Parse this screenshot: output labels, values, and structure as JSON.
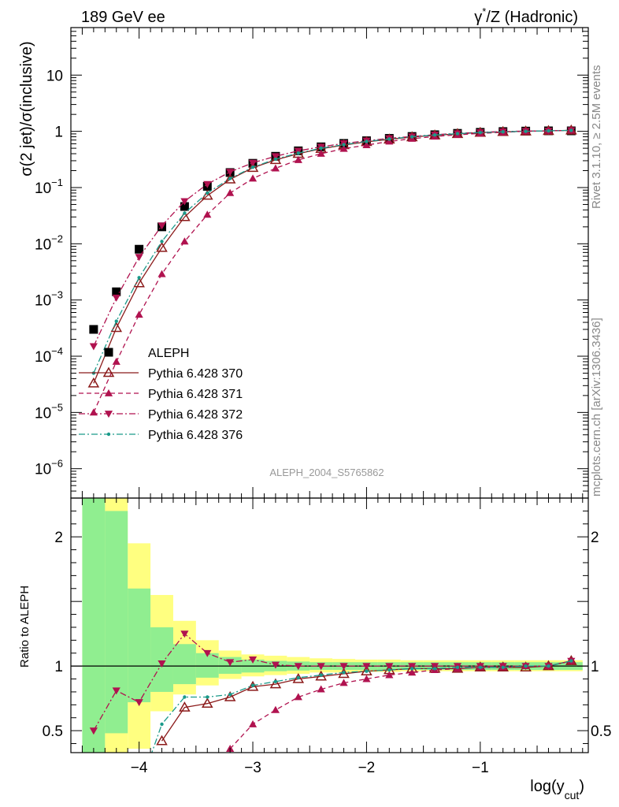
{
  "header": {
    "left": "189 GeV ee",
    "right_prefix": "γ",
    "right_sup": "*",
    "right_suffix": "/Z (Hadronic)"
  },
  "side_labels": {
    "rivet": "Rivet 3.1.10, ≥ 2.5M events",
    "mcplots": "mcplots.cern.ch [arXiv:1306.3436]"
  },
  "watermark": "ALEPH_2004_S5765862",
  "chart_data": [
    {
      "type": "scatter",
      "panel": "main",
      "ylabel": "σ(2 jet)/σ(inclusive)",
      "y_scale": "log",
      "xlim": [
        -4.6,
        -0.05
      ],
      "ylim": [
        3e-07,
        70
      ],
      "y_ticks": [
        {
          "v": 1e-06,
          "base": "10",
          "exp": "−6"
        },
        {
          "v": 1e-05,
          "base": "10",
          "exp": "−5"
        },
        {
          "v": 0.0001,
          "base": "10",
          "exp": "−4"
        },
        {
          "v": 0.001,
          "base": "10",
          "exp": "−3"
        },
        {
          "v": 0.01,
          "base": "10",
          "exp": "−2"
        },
        {
          "v": 0.1,
          "base": "10",
          "exp": "−1"
        },
        {
          "v": 1,
          "base": "1",
          "exp": ""
        },
        {
          "v": 10,
          "base": "10",
          "exp": ""
        }
      ],
      "legend_position": "lower-left",
      "x": [
        -4.4,
        -4.2,
        -4.0,
        -3.8,
        -3.6,
        -3.4,
        -3.2,
        -3.0,
        -2.8,
        -2.6,
        -2.4,
        -2.2,
        -2.0,
        -1.8,
        -1.6,
        -1.4,
        -1.2,
        -1.0,
        -0.8,
        -0.6,
        -0.4,
        -0.2
      ],
      "series": [
        {
          "name": "ALEPH",
          "color": "#000000",
          "marker": "square",
          "line": "none",
          "x": [
            -4.4,
            -4.2,
            -4.0,
            -3.8,
            -3.6,
            -3.4,
            -3.2,
            -3.0,
            -2.8,
            -2.6,
            -2.4,
            -2.2,
            -2.0,
            -1.8,
            -1.6,
            -1.4,
            -1.2,
            -1.0,
            -0.8,
            -0.6,
            -0.4,
            -0.2
          ],
          "values": [
            0.0003,
            0.0014,
            0.008,
            0.02,
            0.046,
            0.105,
            0.185,
            0.27,
            0.36,
            0.45,
            0.53,
            0.61,
            0.68,
            0.75,
            0.81,
            0.87,
            0.92,
            0.96,
            0.99,
            1.01,
            1.02,
            1.02
          ]
        },
        {
          "name": "Pythia 6.428 370",
          "color": "#8b1a1a",
          "marker": "triangle-up-open",
          "line": "solid",
          "values": [
            3.3e-05,
            0.00032,
            0.002,
            0.0085,
            0.03,
            0.072,
            0.14,
            0.225,
            0.31,
            0.4,
            0.49,
            0.57,
            0.65,
            0.72,
            0.79,
            0.85,
            0.9,
            0.95,
            0.98,
            1.0,
            1.02,
            1.04
          ]
        },
        {
          "name": "Pythia 6.428 371",
          "color": "#b0124f",
          "marker": "triangle-up",
          "line": "dashed",
          "values": [
            1e-05,
            8e-05,
            0.00055,
            0.0029,
            0.011,
            0.033,
            0.08,
            0.145,
            0.22,
            0.31,
            0.4,
            0.49,
            0.57,
            0.66,
            0.74,
            0.81,
            0.87,
            0.92,
            0.96,
            1.0,
            1.02,
            1.04
          ]
        },
        {
          "name": "Pythia 6.428 372",
          "color": "#b0124f",
          "marker": "triangle-down",
          "line": "dashdot",
          "values": [
            0.00015,
            0.0011,
            0.0058,
            0.021,
            0.057,
            0.115,
            0.19,
            0.275,
            0.36,
            0.45,
            0.53,
            0.61,
            0.68,
            0.75,
            0.81,
            0.87,
            0.92,
            0.96,
            0.99,
            1.01,
            1.02,
            1.04
          ]
        },
        {
          "name": "Pythia 6.428 376",
          "color": "#1a9a8a",
          "marker": "dot",
          "line": "dashdot",
          "values": [
            5e-05,
            0.00042,
            0.0025,
            0.011,
            0.035,
            0.08,
            0.145,
            0.23,
            0.32,
            0.41,
            0.5,
            0.58,
            0.66,
            0.73,
            0.8,
            0.86,
            0.91,
            0.95,
            0.98,
            1.0,
            1.02,
            1.04
          ]
        }
      ]
    },
    {
      "type": "scatter",
      "panel": "ratio",
      "ylabel": "Ratio to ALEPH",
      "xlabel_base": "log(y",
      "xlabel_sub": "cut",
      "xlabel_close": ")",
      "xlim": [
        -4.6,
        -0.05
      ],
      "ylim": [
        0.33,
        2.3
      ],
      "y_ticks": [
        {
          "v": 0.5,
          "label": "0.5"
        },
        {
          "v": 1,
          "label": "1"
        },
        {
          "v": 2,
          "label": "2"
        }
      ],
      "x_ticks": [
        {
          "v": -4,
          "label": "−4"
        },
        {
          "v": -3,
          "label": "−3"
        },
        {
          "v": -2,
          "label": "−2"
        },
        {
          "v": -1,
          "label": "−1"
        }
      ],
      "bin_edges": [
        -4.5,
        -4.3,
        -4.1,
        -3.9,
        -3.7,
        -3.5,
        -3.3,
        -3.1,
        -2.9,
        -2.7,
        -2.5,
        -2.3,
        -2.1,
        -1.9,
        -1.7,
        -1.5,
        -1.3,
        -1.1,
        -0.9,
        -0.7,
        -0.5,
        -0.3,
        -0.1
      ],
      "yellow_band": {
        "color": "#ffff80",
        "lo": [
          0.0,
          0.0,
          0.36,
          0.65,
          0.78,
          0.85,
          0.9,
          0.92,
          0.93,
          0.94,
          0.95,
          0.95,
          0.955,
          0.955,
          0.96,
          0.96,
          0.96,
          0.96,
          0.96,
          0.96,
          0.96,
          0.96
        ],
        "hi": [
          3.0,
          2.62,
          1.95,
          1.55,
          1.35,
          1.2,
          1.12,
          1.09,
          1.08,
          1.07,
          1.06,
          1.055,
          1.05,
          1.05,
          1.045,
          1.045,
          1.045,
          1.045,
          1.045,
          1.045,
          1.045,
          1.045
        ]
      },
      "green_band": {
        "color": "#90ee90",
        "lo": [
          0.0,
          0.48,
          0.72,
          0.8,
          0.86,
          0.91,
          0.94,
          0.95,
          0.96,
          0.965,
          0.97,
          0.97,
          0.97,
          0.97,
          0.97,
          0.97,
          0.97,
          0.97,
          0.97,
          0.97,
          0.97,
          0.97
        ],
        "hi": [
          3.0,
          2.2,
          1.6,
          1.3,
          1.17,
          1.1,
          1.07,
          1.05,
          1.04,
          1.035,
          1.03,
          1.03,
          1.03,
          1.03,
          1.03,
          1.03,
          1.03,
          1.03,
          1.03,
          1.03,
          1.03,
          1.03
        ]
      },
      "series": [
        {
          "name": "Pythia 6.428 370",
          "color": "#8b1a1a",
          "marker": "triangle-up-open",
          "line": "solid",
          "x": [
            -3.8,
            -3.6,
            -3.4,
            -3.2,
            -3.0,
            -2.8,
            -2.6,
            -2.4,
            -2.2,
            -2.0,
            -1.8,
            -1.6,
            -1.4,
            -1.2,
            -1.0,
            -0.8,
            -0.6,
            -0.4,
            -0.2
          ],
          "values": [
            0.42,
            0.68,
            0.71,
            0.76,
            0.84,
            0.86,
            0.9,
            0.92,
            0.94,
            0.96,
            0.97,
            0.98,
            0.98,
            0.98,
            0.99,
            0.99,
            0.99,
            1.0,
            1.04
          ]
        },
        {
          "name": "Pythia 6.428 371",
          "color": "#b0124f",
          "marker": "triangle-up",
          "line": "dashed",
          "x": [
            -3.2,
            -3.0,
            -2.8,
            -2.6,
            -2.4,
            -2.2,
            -2.0,
            -1.8,
            -1.6,
            -1.4,
            -1.2,
            -1.0,
            -0.8,
            -0.6,
            -0.4,
            -0.2
          ],
          "values": [
            0.36,
            0.55,
            0.66,
            0.76,
            0.82,
            0.87,
            0.9,
            0.93,
            0.95,
            0.97,
            0.98,
            0.99,
            0.99,
            1.0,
            1.0,
            1.04
          ]
        },
        {
          "name": "Pythia 6.428 372",
          "color": "#b0124f",
          "marker": "triangle-down",
          "line": "dashdot",
          "x": [
            -4.4,
            -4.2,
            -4.0,
            -3.8,
            -3.6,
            -3.4,
            -3.2,
            -3.0,
            -2.8,
            -2.6,
            -2.4,
            -2.2,
            -2.0,
            -1.8,
            -1.6,
            -1.4,
            -1.2,
            -1.0,
            -0.8,
            -0.6,
            -0.4,
            -0.2
          ],
          "values": [
            0.5,
            0.81,
            0.72,
            1.02,
            1.25,
            1.1,
            1.03,
            1.05,
            1.01,
            1.0,
            1.0,
            1.0,
            1.0,
            1.0,
            1.0,
            1.0,
            1.0,
            1.0,
            1.0,
            1.0,
            1.0,
            1.04
          ]
        },
        {
          "name": "Pythia 6.428 376",
          "color": "#1a9a8a",
          "marker": "dot",
          "line": "dashdot",
          "x": [
            -3.9,
            -3.8,
            -3.6,
            -3.4,
            -3.2,
            -3.0,
            -2.8,
            -2.6,
            -2.4,
            -2.2,
            -2.0,
            -1.8,
            -1.6,
            -1.4,
            -1.2,
            -1.0,
            -0.8,
            -0.6,
            -0.4,
            -0.2
          ],
          "values": [
            0.3,
            0.55,
            0.76,
            0.76,
            0.78,
            0.85,
            0.88,
            0.91,
            0.93,
            0.95,
            0.96,
            0.97,
            0.98,
            0.98,
            0.99,
            0.99,
            0.99,
            1.0,
            1.0,
            1.04
          ]
        }
      ]
    }
  ]
}
